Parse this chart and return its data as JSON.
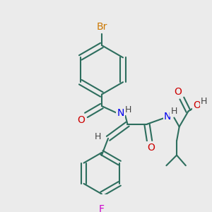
{
  "bg_color": "#ebebeb",
  "bond_color": "#2d6e5e",
  "bond_width": 1.5,
  "atom_colors": {
    "Br": "#cc7700",
    "F": "#cc00cc",
    "O": "#cc0000",
    "N": "#0000ee",
    "H": "#444444",
    "C": "#2d6e5e"
  },
  "font_size_main": 10,
  "font_size_h": 9
}
